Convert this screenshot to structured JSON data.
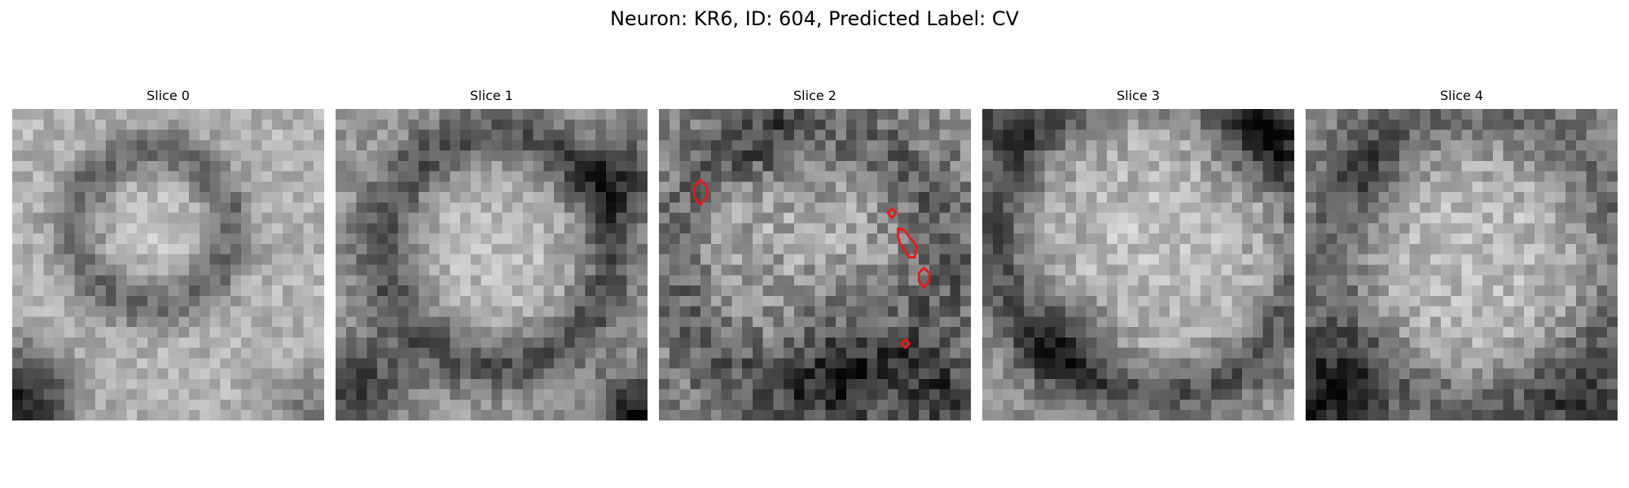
{
  "figure": {
    "title": "Neuron: KR6, ID: 604, Predicted Label: CV"
  },
  "slices": [
    {
      "label": "Slice 0",
      "rois": []
    },
    {
      "label": "Slice 1",
      "rois": []
    },
    {
      "label": "Slice 2",
      "rois": [
        "roi-1",
        "roi-2",
        "roi-3",
        "roi-4",
        "roi-5"
      ]
    },
    {
      "label": "Slice 3",
      "rois": []
    },
    {
      "label": "Slice 4",
      "rois": []
    }
  ],
  "colors": {
    "contour": "#e8191c",
    "background": "#ffffff"
  }
}
